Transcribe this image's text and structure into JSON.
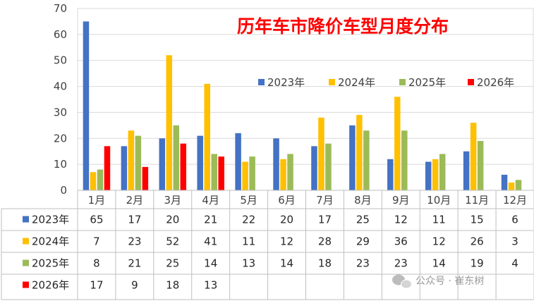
{
  "chart_data": {
    "type": "bar",
    "title": "历年车市降价车型月度分布",
    "categories": [
      "1月",
      "2月",
      "3月",
      "4月",
      "5月",
      "6月",
      "7月",
      "8月",
      "9月",
      "10月",
      "11月",
      "12月"
    ],
    "series": [
      {
        "name": "2023年",
        "color": "#4472c4",
        "values": [
          65,
          17,
          20,
          21,
          22,
          20,
          17,
          25,
          12,
          11,
          15,
          6
        ]
      },
      {
        "name": "2024年",
        "color": "#ffc000",
        "values": [
          7,
          23,
          52,
          41,
          11,
          12,
          28,
          29,
          36,
          12,
          26,
          3
        ]
      },
      {
        "name": "2025年",
        "color": "#9bbb59",
        "values": [
          8,
          21,
          25,
          14,
          13,
          14,
          18,
          23,
          23,
          14,
          19,
          4
        ]
      },
      {
        "name": "2026年",
        "color": "#ff0000",
        "values": [
          17,
          9,
          18,
          13,
          null,
          null,
          null,
          null,
          null,
          null,
          null,
          null
        ]
      }
    ],
    "ylim": [
      0,
      70
    ],
    "yticks": [
      "0",
      "10",
      "20",
      "30",
      "40",
      "50",
      "60",
      "70"
    ],
    "grid": true,
    "legend_position": "top-right",
    "data_table": true
  },
  "watermark": {
    "text": "公众号 · 崔东树",
    "icon": "wechat-icon"
  }
}
